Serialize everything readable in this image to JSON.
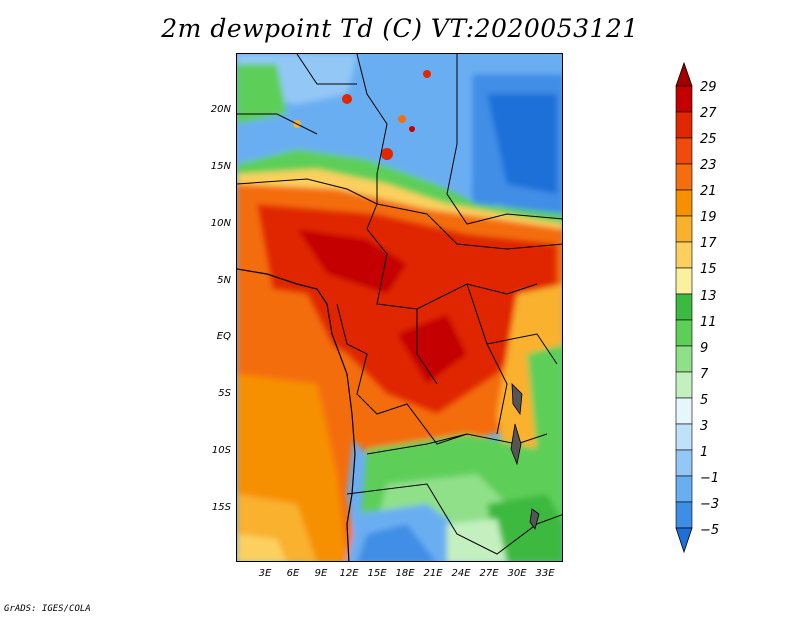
{
  "title": "2m dewpoint Td (C) VT:2020053121",
  "footer": "GrADS: IGES/COLA",
  "y_ticks": [
    "20N",
    "15N",
    "10N",
    "5N",
    "EQ",
    "5S",
    "10S",
    "15S"
  ],
  "x_ticks": [
    "3E",
    "6E",
    "9E",
    "12E",
    "15E",
    "18E",
    "21E",
    "24E",
    "27E",
    "30E",
    "33E"
  ],
  "colorbar": {
    "labels": [
      "29",
      "27",
      "25",
      "23",
      "21",
      "19",
      "17",
      "15",
      "13",
      "11",
      "9",
      "7",
      "5",
      "3",
      "1",
      "−1",
      "−3",
      "−5"
    ],
    "colors": [
      "#a50000",
      "#c40000",
      "#e02800",
      "#f04a0c",
      "#f46d0f",
      "#f79000",
      "#f9b12e",
      "#fbd05e",
      "#fbf0a0",
      "#3cb941",
      "#5dcf59",
      "#90e08a",
      "#c4f0c0",
      "#e6f7fb",
      "#bfe1f9",
      "#93c8f6",
      "#6aaef2",
      "#3f8ee6",
      "#1e6fd8"
    ],
    "top_arrow_color": "#a50000",
    "bottom_arrow_color": "#1e6fd8"
  }
}
